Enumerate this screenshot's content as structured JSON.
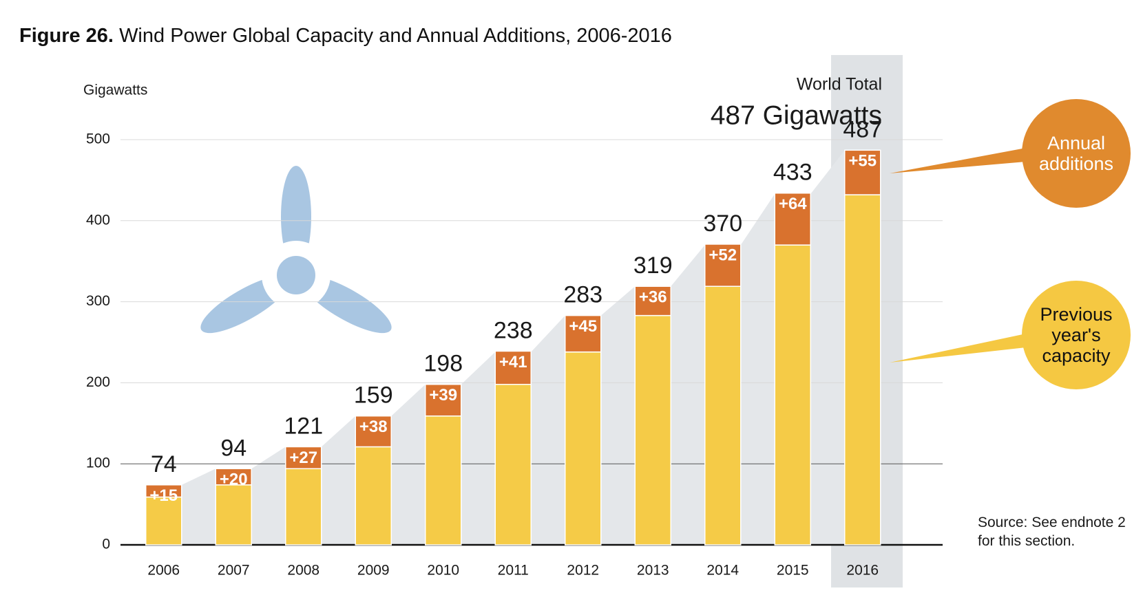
{
  "title_label": "Figure 26.",
  "title": "Wind Power Global Capacity and Annual Additions, 2006-2016",
  "source": "Source: See endnote 2 for this section.",
  "chart_data": {
    "type": "stacked_bar",
    "y_label": "Gigawatts",
    "annotation_label": "World Total",
    "annotation_value": "487 Gigawatts",
    "categories": [
      "2006",
      "2007",
      "2008",
      "2009",
      "2010",
      "2011",
      "2012",
      "2013",
      "2014",
      "2015",
      "2016"
    ],
    "series": [
      {
        "name": "Previous year's capacity",
        "color": "#f5cb47",
        "values": [
          59,
          74,
          94,
          121,
          159,
          198,
          238,
          283,
          319,
          370,
          432
        ]
      },
      {
        "name": "Annual additions",
        "color": "#d9722e",
        "values": [
          15,
          20,
          27,
          38,
          39,
          41,
          45,
          36,
          52,
          64,
          55
        ],
        "value_labels": [
          "+15",
          "+20",
          "+27",
          "+38",
          "+39",
          "+41",
          "+45",
          "+36",
          "+52",
          "+64",
          "+55"
        ]
      }
    ],
    "totals": [
      74,
      94,
      121,
      159,
      198,
      238,
      283,
      319,
      370,
      433,
      487
    ],
    "legend_colors": [
      "#f5c842",
      "#e08a2e"
    ],
    "ylim": [
      0,
      500
    ],
    "yticks": [
      0,
      100,
      200,
      300,
      400,
      500
    ],
    "grid": true
  }
}
